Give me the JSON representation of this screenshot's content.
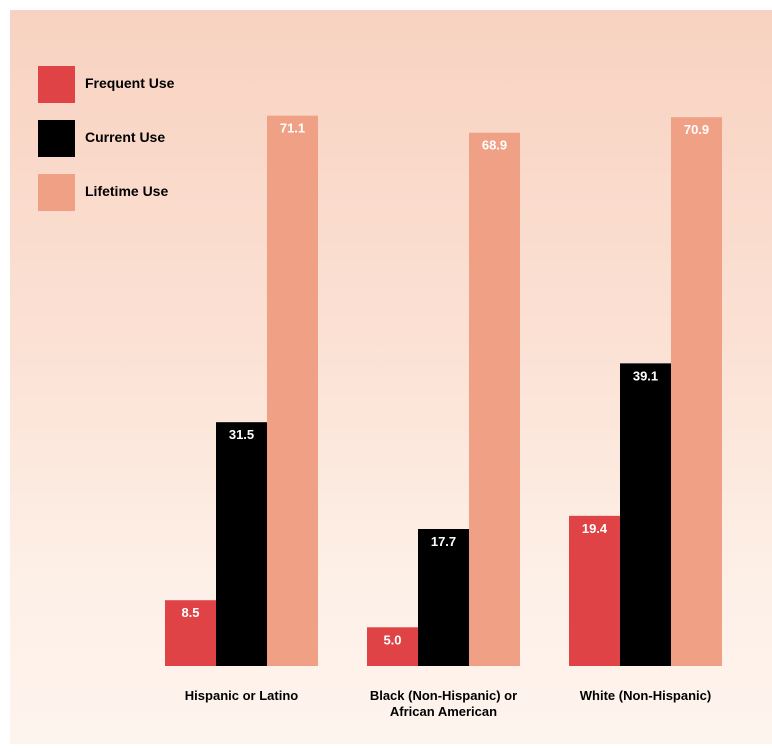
{
  "chart_data": {
    "type": "bar",
    "title": "",
    "xlabel": "",
    "ylabel": "",
    "ylim": [
      0,
      75
    ],
    "grid": false,
    "legend_position": "top-left",
    "categories": [
      [
        "Hispanic or Latino"
      ],
      [
        "Black (Non-Hispanic) or",
        "African American"
      ],
      [
        "White (Non-Hispanic)"
      ]
    ],
    "series": [
      {
        "name": "Frequent Use",
        "color": "#df4346",
        "label_color": "#ffffff",
        "values": [
          8.5,
          5.0,
          19.4
        ]
      },
      {
        "name": "Current Use",
        "color": "#000000",
        "label_color": "#ffffff",
        "values": [
          31.5,
          17.7,
          39.1
        ]
      },
      {
        "name": "Lifetime Use",
        "color": "#f0a085",
        "label_color": "#ffffff",
        "values": [
          71.1,
          68.9,
          70.9
        ]
      }
    ]
  }
}
